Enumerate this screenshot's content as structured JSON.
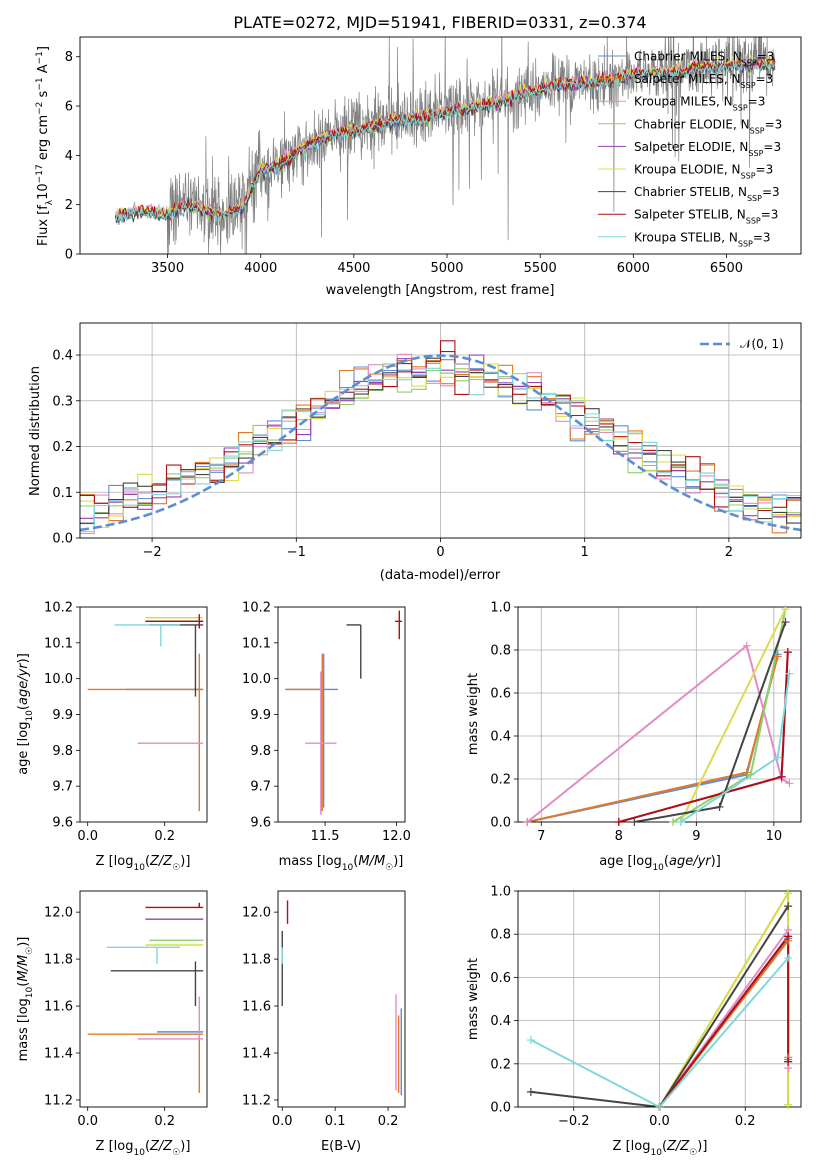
{
  "title": "PLATE=0272, MJD=51941, FIBERID=0331, z=0.374",
  "colors": {
    "Chabrier MILES": "#5b8ed6",
    "Salpeter MILES": "#e07a2a",
    "Kroupa MILES": "#e28cc6",
    "Chabrier ELODIE": "#8ed06a",
    "Salpeter ELODIE": "#9a3fb0",
    "Kroupa ELODIE": "#dcdc4a",
    "Chabrier STELIB": "#444444",
    "Salpeter STELIB": "#b01010",
    "Kroupa STELIB": "#7fd8dc",
    "data": "#808080",
    "gauss": "#5b8ed6"
  },
  "legend_models": [
    "Chabrier MILES",
    "Salpeter MILES",
    "Kroupa MILES",
    "Chabrier ELODIE",
    "Salpeter ELODIE",
    "Kroupa ELODIE",
    "Chabrier STELIB",
    "Salpeter STELIB",
    "Kroupa STELIB"
  ],
  "legend_suffix": "N",
  "legend_sub": "SSP",
  "legend_eq": "=3",
  "chart_data": [
    {
      "type": "line",
      "title": "PLATE=0272, MJD=51941, FIBERID=0331, z=0.374",
      "xlabel": "wavelength [Angstrom, rest frame]",
      "ylabel": "Flux [f_λ 10^-17 erg cm^-2 s^-1 A^-1]",
      "xlim": [
        3030,
        6900
      ],
      "ylim": [
        0,
        8.8
      ],
      "xticks": [
        3500,
        4000,
        4500,
        5000,
        5500,
        6000,
        6500
      ],
      "yticks": [
        0,
        2,
        4,
        6,
        8
      ],
      "continuum": {
        "x": [
          3220,
          3300,
          3400,
          3500,
          3600,
          3700,
          3800,
          3900,
          4000,
          4100,
          4200,
          4300,
          4400,
          4500,
          4700,
          4900,
          5100,
          5300,
          5400,
          5600,
          5800,
          6000,
          6200,
          6400,
          6600,
          6750
        ],
        "y": [
          1.5,
          1.7,
          1.75,
          1.6,
          2.0,
          1.8,
          1.6,
          1.9,
          3.4,
          3.6,
          4.2,
          4.6,
          4.9,
          5.0,
          5.4,
          5.6,
          5.9,
          6.2,
          6.5,
          6.9,
          7.0,
          7.3,
          7.4,
          7.6,
          7.7,
          7.7
        ]
      },
      "data_range": [
        3220,
        6760
      ],
      "legend": "upper right",
      "grid": false
    },
    {
      "type": "step",
      "xlabel": "(data-model)/error",
      "ylabel": "Normed distribution",
      "xlim": [
        -2.5,
        2.5
      ],
      "ylim": [
        0,
        0.47
      ],
      "xticks": [
        -2,
        -1,
        0,
        1,
        2
      ],
      "yticks": [
        0.0,
        0.1,
        0.2,
        0.3,
        0.4
      ],
      "gauss_label": "𝒩(0, 1)",
      "grid": true
    },
    {
      "type": "errorbar",
      "xlabel": "Z [log10(Z/Z☉)]",
      "ylabel": "age  [log10(age/yr)]",
      "xlim": [
        -0.02,
        0.31
      ],
      "ylim": [
        9.6,
        10.2
      ],
      "xticks": [
        0.0,
        0.2
      ],
      "yticks": [
        9.6,
        9.7,
        9.8,
        9.9,
        10.0,
        10.1,
        10.2
      ]
    },
    {
      "type": "errorbar",
      "xlabel": "mass [log10(M/M☉)]",
      "xlim": [
        11.17,
        12.06
      ],
      "ylim": [
        9.6,
        10.2
      ],
      "xticks": [
        11.5,
        12.0
      ],
      "yticks": [
        9.6,
        9.7,
        9.8,
        9.9,
        10.0,
        10.1,
        10.2
      ]
    },
    {
      "type": "line",
      "xlabel": "age  [log10(age/yr)]",
      "ylabel": "mass weight",
      "xlim": [
        6.7,
        10.35
      ],
      "ylim": [
        0,
        1.0
      ],
      "xticks": [
        7,
        8,
        9,
        10
      ],
      "yticks": [
        0.0,
        0.2,
        0.4,
        0.6,
        0.8,
        1.0
      ],
      "series": [
        {
          "name": "Chabrier MILES",
          "x": [
            6.82,
            9.65,
            10.05
          ],
          "y": [
            0.0,
            0.22,
            0.78
          ]
        },
        {
          "name": "Salpeter MILES",
          "x": [
            6.82,
            9.65,
            10.05
          ],
          "y": [
            0.0,
            0.23,
            0.77
          ]
        },
        {
          "name": "Kroupa MILES",
          "x": [
            6.82,
            9.65,
            10.1,
            10.2
          ],
          "y": [
            0.0,
            0.82,
            0.2,
            0.18
          ]
        },
        {
          "name": "Chabrier ELODIE",
          "x": [
            8.7,
            9.7,
            10.15
          ],
          "y": [
            0.0,
            0.22,
            0.99
          ]
        },
        {
          "name": "Salpeter ELODIE",
          "x": [
            8.0,
            10.1,
            10.18
          ],
          "y": [
            0.0,
            0.21,
            0.79
          ]
        },
        {
          "name": "Kroupa ELODIE",
          "x": [
            8.8,
            10.15
          ],
          "y": [
            0.0,
            0.99
          ]
        },
        {
          "name": "Chabrier STELIB",
          "x": [
            8.2,
            9.3,
            10.15
          ],
          "y": [
            0.0,
            0.07,
            0.93
          ]
        },
        {
          "name": "Salpeter STELIB",
          "x": [
            8.0,
            10.1,
            10.18
          ],
          "y": [
            0.0,
            0.21,
            0.79
          ]
        },
        {
          "name": "Kroupa STELIB",
          "x": [
            8.8,
            10.05,
            10.2
          ],
          "y": [
            0.0,
            0.3,
            0.69
          ]
        }
      ],
      "grid": true
    },
    {
      "type": "errorbar",
      "xlabel": "Z [log10(Z/Z☉)]",
      "ylabel": "mass [log10(M/M☉)]",
      "xlim": [
        -0.02,
        0.31
      ],
      "ylim": [
        11.17,
        12.09
      ],
      "xticks": [
        0.0,
        0.2
      ],
      "yticks": [
        11.2,
        11.4,
        11.6,
        11.8,
        12.0
      ]
    },
    {
      "type": "errorbar",
      "xlabel": "E(B-V)",
      "xlim": [
        -0.008,
        0.232
      ],
      "ylim": [
        11.17,
        12.09
      ],
      "xticks": [
        0.0,
        0.1,
        0.2
      ],
      "yticks": [
        11.2,
        11.4,
        11.6,
        11.8,
        12.0
      ]
    },
    {
      "type": "line",
      "xlabel": "Z [log10(Z/Z☉)]",
      "ylabel": "mass weight",
      "xlim": [
        -0.33,
        0.33
      ],
      "ylim": [
        0,
        1.0
      ],
      "xticks": [
        -0.2,
        0.0,
        0.2
      ],
      "yticks": [
        0.0,
        0.2,
        0.4,
        0.6,
        0.8,
        1.0
      ],
      "series": [
        {
          "name": "Chabrier MILES",
          "x": [
            0.0,
            0.3,
            0.3
          ],
          "y": [
            0.0,
            0.78,
            0.22
          ]
        },
        {
          "name": "Salpeter MILES",
          "x": [
            0.0,
            0.3,
            0.3
          ],
          "y": [
            0.0,
            0.77,
            0.23
          ]
        },
        {
          "name": "Kroupa MILES",
          "x": [
            0.0,
            0.3,
            0.3
          ],
          "y": [
            0.0,
            0.82,
            0.18
          ]
        },
        {
          "name": "Chabrier ELODIE",
          "x": [
            0.0,
            0.3,
            0.3
          ],
          "y": [
            0.0,
            0.99,
            0.01
          ]
        },
        {
          "name": "Salpeter ELODIE",
          "x": [
            0.0,
            0.3,
            0.3
          ],
          "y": [
            0.0,
            0.79,
            0.21
          ]
        },
        {
          "name": "Kroupa ELODIE",
          "x": [
            0.0,
            0.3,
            0.3
          ],
          "y": [
            0.0,
            0.99,
            0.01
          ]
        },
        {
          "name": "Chabrier STELIB",
          "x": [
            -0.3,
            0.0,
            0.3
          ],
          "y": [
            0.07,
            0.0,
            0.93
          ]
        },
        {
          "name": "Salpeter STELIB",
          "x": [
            0.0,
            0.3,
            0.3
          ],
          "y": [
            0.0,
            0.79,
            0.21
          ]
        },
        {
          "name": "Kroupa STELIB",
          "x": [
            -0.3,
            0.0,
            0.3
          ],
          "y": [
            0.31,
            0.0,
            0.69
          ]
        }
      ],
      "grid": true
    }
  ],
  "errorbars": {
    "z_age": [
      {
        "name": "Chabrier MILES",
        "x": 0.28,
        "xerr": [
          0.18,
          0.02
        ],
        "y": 9.97,
        "yerr": [
          0.0,
          0.0
        ]
      },
      {
        "name": "Salpeter MILES",
        "x": 0.29,
        "xerr": [
          0.29,
          0.01
        ],
        "y": 9.97,
        "yerr": [
          0.34,
          0.1
        ]
      },
      {
        "name": "Kroupa MILES",
        "x": 0.29,
        "xerr": [
          0.16,
          0.01
        ],
        "y": 9.82,
        "yerr": [
          0.0,
          0.0
        ]
      },
      {
        "name": "Chabrier ELODIE",
        "x": 0.29,
        "xerr": [
          0.12,
          0.01
        ],
        "y": 10.16,
        "yerr": [
          0.0,
          0.0
        ]
      },
      {
        "name": "Salpeter ELODIE",
        "x": 0.29,
        "xerr": [
          0.14,
          0.01
        ],
        "y": 10.16,
        "yerr": [
          0.01,
          0.01
        ]
      },
      {
        "name": "Kroupa ELODIE",
        "x": 0.29,
        "xerr": [
          0.14,
          0.01
        ],
        "y": 10.17,
        "yerr": [
          0.0,
          0.0
        ]
      },
      {
        "name": "Chabrier STELIB",
        "x": 0.28,
        "xerr": [
          0.12,
          0.02
        ],
        "y": 10.15,
        "yerr": [
          0.2,
          0.0
        ]
      },
      {
        "name": "Salpeter STELIB",
        "x": 0.29,
        "xerr": [
          0.14,
          0.01
        ],
        "y": 10.16,
        "yerr": [
          0.02,
          0.02
        ]
      },
      {
        "name": "Kroupa STELIB",
        "x": 0.19,
        "xerr": [
          0.12,
          0.05
        ],
        "y": 10.15,
        "yerr": [
          0.06,
          0.0
        ]
      }
    ],
    "mass_age": [
      {
        "name": "Chabrier MILES",
        "x": 11.49,
        "xerr": [
          0.27,
          0.1
        ],
        "y": 9.97,
        "yerr": [
          0.33,
          0.1
        ]
      },
      {
        "name": "Salpeter MILES",
        "x": 11.48,
        "xerr": [
          0.25,
          0.0
        ],
        "y": 9.97,
        "yerr": [
          0.34,
          0.1
        ]
      },
      {
        "name": "Kroupa MILES",
        "x": 11.47,
        "xerr": [
          0.11,
          0.11
        ],
        "y": 9.82,
        "yerr": [
          0.2,
          0.2
        ]
      },
      {
        "name": "Chabrier ELODIE",
        "x": 11.88,
        "xerr": [
          0.0,
          0.0
        ],
        "y": 10.16,
        "yerr": [
          0.0,
          0.0
        ]
      },
      {
        "name": "Salpeter ELODIE",
        "x": 11.97,
        "xerr": [
          0.0,
          0.0
        ],
        "y": 10.16,
        "yerr": [
          0.0,
          0.0
        ]
      },
      {
        "name": "Kroupa ELODIE",
        "x": 11.86,
        "xerr": [
          0.0,
          0.0
        ],
        "y": 10.17,
        "yerr": [
          0.0,
          0.0
        ]
      },
      {
        "name": "Chabrier STELIB",
        "x": 11.75,
        "xerr": [
          0.1,
          0.0
        ],
        "y": 10.15,
        "yerr": [
          0.15,
          0.0
        ]
      },
      {
        "name": "Salpeter STELIB",
        "x": 12.02,
        "xerr": [
          0.03,
          0.02
        ],
        "y": 10.16,
        "yerr": [
          0.05,
          0.03
        ]
      },
      {
        "name": "Kroupa STELIB",
        "x": 11.85,
        "xerr": [
          0.0,
          0.0
        ],
        "y": 10.15,
        "yerr": [
          0.0,
          0.0
        ]
      }
    ],
    "z_mass": [
      {
        "name": "Chabrier MILES",
        "x": 0.28,
        "xerr": [
          0.1,
          0.02
        ],
        "y": 11.49,
        "yerr": [
          0.0,
          0.0
        ]
      },
      {
        "name": "Salpeter MILES",
        "x": 0.29,
        "xerr": [
          0.29,
          0.01
        ],
        "y": 11.48,
        "yerr": [
          0.25,
          0.0
        ]
      },
      {
        "name": "Kroupa MILES",
        "x": 0.29,
        "xerr": [
          0.16,
          0.01
        ],
        "y": 11.46,
        "yerr": [
          0.0,
          0.18
        ]
      },
      {
        "name": "Chabrier ELODIE",
        "x": 0.29,
        "xerr": [
          0.13,
          0.01
        ],
        "y": 11.88,
        "yerr": [
          0.0,
          0.0
        ]
      },
      {
        "name": "Salpeter ELODIE",
        "x": 0.29,
        "xerr": [
          0.14,
          0.01
        ],
        "y": 11.97,
        "yerr": [
          0.0,
          0.0
        ]
      },
      {
        "name": "Kroupa ELODIE",
        "x": 0.29,
        "xerr": [
          0.14,
          0.01
        ],
        "y": 11.86,
        "yerr": [
          0.0,
          0.0
        ]
      },
      {
        "name": "Chabrier STELIB",
        "x": 0.28,
        "xerr": [
          0.22,
          0.02
        ],
        "y": 11.75,
        "yerr": [
          0.15,
          0.04
        ]
      },
      {
        "name": "Salpeter STELIB",
        "x": 0.29,
        "xerr": [
          0.14,
          0.01
        ],
        "y": 12.02,
        "yerr": [
          0.0,
          0.02
        ]
      },
      {
        "name": "Kroupa STELIB",
        "x": 0.18,
        "xerr": [
          0.13,
          0.06
        ],
        "y": 11.85,
        "yerr": [
          0.07,
          0.0
        ]
      }
    ],
    "ebv_mass": [
      {
        "name": "Chabrier MILES",
        "x": 0.225,
        "xerr": [
          0.0,
          0.0
        ],
        "y": 11.49,
        "yerr": [
          0.27,
          0.1
        ]
      },
      {
        "name": "Salpeter MILES",
        "x": 0.22,
        "xerr": [
          0.0,
          0.0
        ],
        "y": 11.48,
        "yerr": [
          0.25,
          0.08
        ]
      },
      {
        "name": "Kroupa MILES",
        "x": 0.215,
        "xerr": [
          0.0,
          0.0
        ],
        "y": 11.46,
        "yerr": [
          0.22,
          0.19
        ]
      },
      {
        "name": "Chabrier ELODIE",
        "x": 0.0,
        "xerr": [
          0.0,
          0.0
        ],
        "y": 11.88,
        "yerr": [
          0.0,
          0.0
        ]
      },
      {
        "name": "Salpeter ELODIE",
        "x": 0.0,
        "xerr": [
          0.0,
          0.0
        ],
        "y": 11.97,
        "yerr": [
          0.0,
          0.0
        ]
      },
      {
        "name": "Kroupa ELODIE",
        "x": 0.0,
        "xerr": [
          0.0,
          0.0
        ],
        "y": 11.86,
        "yerr": [
          0.0,
          0.0
        ]
      },
      {
        "name": "Chabrier STELIB",
        "x": 0.0,
        "xerr": [
          0.0,
          0.0
        ],
        "y": 11.75,
        "yerr": [
          0.15,
          0.17
        ]
      },
      {
        "name": "Salpeter STELIB",
        "x": 0.01,
        "xerr": [
          0.0,
          0.0
        ],
        "y": 12.02,
        "yerr": [
          0.07,
          0.03
        ]
      },
      {
        "name": "Kroupa STELIB",
        "x": 0.0,
        "xerr": [
          0.0,
          0.0
        ],
        "y": 11.85,
        "yerr": [
          0.07,
          0.0
        ]
      }
    ]
  }
}
